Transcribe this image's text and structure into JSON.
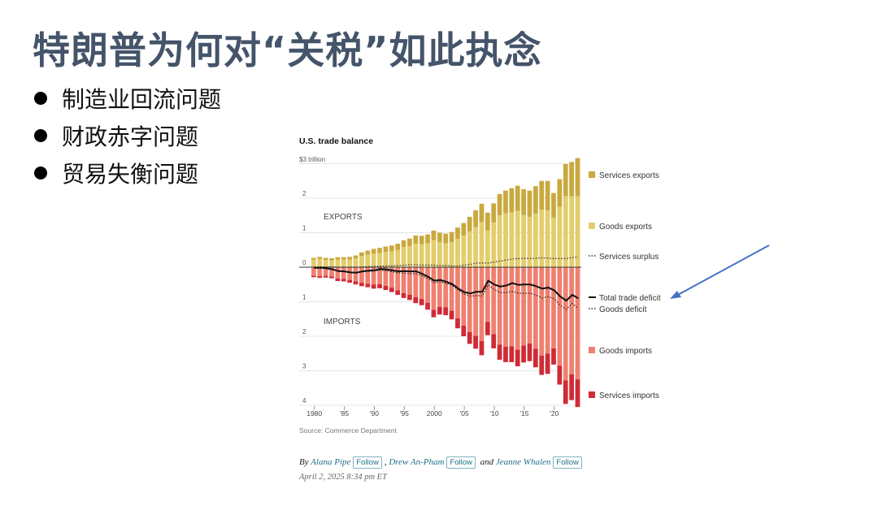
{
  "slide": {
    "title": "特朗普为何对“关税”如此执念",
    "bullets": [
      "制造业回流问题",
      "财政赤字问题",
      "贸易失衡问题"
    ]
  },
  "byline": {
    "by": "By",
    "authors": [
      "Alana Pipe",
      "Drew An-Pham",
      "Jeanne Whalen"
    ],
    "follow_label": "Follow",
    "separator": ",",
    "and": "and",
    "date": "April 2, 2025 8:34 pm ET"
  },
  "colors": {
    "services_exports": "#c9a93e",
    "goods_exports": "#e3cd6c",
    "goods_imports": "#ef8070",
    "services_imports": "#cf2b36",
    "trade_deficit": "#111111",
    "arrow": "#4472c4"
  },
  "chart_data": {
    "type": "bar",
    "title": "U.S. trade balance",
    "source": "Source: Commerce Department",
    "unit_label": "$3 trillion",
    "y_ticks": [
      "0",
      "1",
      "2",
      "3",
      "4"
    ],
    "y_range": [
      -4.2,
      3.2
    ],
    "x_tick_labels": [
      "1980",
      "'85",
      "'90",
      "'95",
      "2000",
      "'05",
      "'10",
      "'15",
      "'20"
    ],
    "annotations": {
      "exports": "EXPORTS",
      "imports": "IMPORTS"
    },
    "years": [
      1980,
      1981,
      1982,
      1983,
      1984,
      1985,
      1986,
      1987,
      1988,
      1989,
      1990,
      1991,
      1992,
      1993,
      1994,
      1995,
      1996,
      1997,
      1998,
      1999,
      2000,
      2001,
      2002,
      2003,
      2004,
      2005,
      2006,
      2007,
      2008,
      2009,
      2010,
      2011,
      2012,
      2013,
      2014,
      2015,
      2016,
      2017,
      2018,
      2019,
      2020,
      2021,
      2022,
      2023,
      2024
    ],
    "series": [
      {
        "name": "Services exports",
        "values": [
          0.05,
          0.06,
          0.06,
          0.06,
          0.07,
          0.07,
          0.08,
          0.09,
          0.11,
          0.12,
          0.14,
          0.15,
          0.16,
          0.17,
          0.18,
          0.2,
          0.22,
          0.24,
          0.24,
          0.26,
          0.28,
          0.27,
          0.28,
          0.29,
          0.33,
          0.37,
          0.42,
          0.49,
          0.53,
          0.51,
          0.56,
          0.62,
          0.66,
          0.7,
          0.73,
          0.75,
          0.76,
          0.8,
          0.83,
          0.85,
          0.72,
          0.8,
          0.93,
          1.0,
          1.1
        ]
      },
      {
        "name": "Goods exports",
        "values": [
          0.22,
          0.24,
          0.21,
          0.2,
          0.22,
          0.22,
          0.22,
          0.25,
          0.32,
          0.36,
          0.39,
          0.41,
          0.44,
          0.46,
          0.5,
          0.58,
          0.61,
          0.68,
          0.67,
          0.69,
          0.78,
          0.73,
          0.69,
          0.73,
          0.82,
          0.91,
          1.04,
          1.16,
          1.31,
          1.07,
          1.29,
          1.5,
          1.56,
          1.59,
          1.63,
          1.51,
          1.46,
          1.55,
          1.67,
          1.65,
          1.43,
          1.75,
          2.06,
          2.05,
          2.06
        ]
      },
      {
        "name": "Goods imports",
        "values": [
          0.25,
          0.26,
          0.25,
          0.27,
          0.33,
          0.34,
          0.37,
          0.41,
          0.45,
          0.48,
          0.5,
          0.49,
          0.54,
          0.59,
          0.67,
          0.75,
          0.8,
          0.87,
          0.92,
          1.03,
          1.23,
          1.15,
          1.16,
          1.26,
          1.48,
          1.69,
          1.88,
          1.99,
          2.14,
          1.58,
          1.94,
          2.24,
          2.3,
          2.29,
          2.39,
          2.27,
          2.21,
          2.36,
          2.56,
          2.5,
          2.35,
          2.85,
          3.28,
          3.1,
          3.25
        ]
      },
      {
        "name": "Services imports",
        "values": [
          0.04,
          0.05,
          0.05,
          0.05,
          0.07,
          0.07,
          0.08,
          0.09,
          0.1,
          0.1,
          0.12,
          0.12,
          0.12,
          0.13,
          0.13,
          0.14,
          0.15,
          0.17,
          0.18,
          0.2,
          0.22,
          0.22,
          0.23,
          0.25,
          0.29,
          0.31,
          0.34,
          0.37,
          0.41,
          0.39,
          0.41,
          0.44,
          0.45,
          0.46,
          0.48,
          0.49,
          0.51,
          0.54,
          0.56,
          0.59,
          0.47,
          0.55,
          0.68,
          0.75,
          0.8
        ]
      },
      {
        "name": "Total trade deficit",
        "values": [
          -0.02,
          -0.01,
          -0.03,
          -0.06,
          -0.11,
          -0.12,
          -0.15,
          -0.16,
          -0.12,
          -0.1,
          -0.09,
          -0.05,
          -0.06,
          -0.09,
          -0.12,
          -0.11,
          -0.12,
          -0.12,
          -0.19,
          -0.28,
          -0.39,
          -0.37,
          -0.42,
          -0.49,
          -0.62,
          -0.72,
          -0.76,
          -0.71,
          -0.71,
          -0.39,
          -0.5,
          -0.56,
          -0.53,
          -0.46,
          -0.51,
          -0.5,
          -0.5,
          -0.55,
          -0.62,
          -0.59,
          -0.67,
          -0.85,
          -0.97,
          -0.8,
          -0.9
        ]
      },
      {
        "name": "Goods deficit",
        "values": [
          -0.03,
          -0.03,
          -0.04,
          -0.07,
          -0.11,
          -0.12,
          -0.15,
          -0.16,
          -0.13,
          -0.12,
          -0.11,
          -0.08,
          -0.1,
          -0.13,
          -0.17,
          -0.17,
          -0.19,
          -0.19,
          -0.25,
          -0.34,
          -0.45,
          -0.42,
          -0.47,
          -0.53,
          -0.66,
          -0.78,
          -0.84,
          -0.82,
          -0.83,
          -0.51,
          -0.65,
          -0.74,
          -0.74,
          -0.7,
          -0.75,
          -0.76,
          -0.75,
          -0.81,
          -0.89,
          -0.85,
          -0.92,
          -1.1,
          -1.22,
          -1.05,
          -1.2
        ]
      },
      {
        "name": "Services surplus",
        "values": [
          0.01,
          0.01,
          0.01,
          0.01,
          0.0,
          0.0,
          0.0,
          0.0,
          0.01,
          0.02,
          0.02,
          0.03,
          0.04,
          0.04,
          0.05,
          0.06,
          0.07,
          0.07,
          0.06,
          0.06,
          0.06,
          0.05,
          0.05,
          0.04,
          0.04,
          0.06,
          0.08,
          0.12,
          0.12,
          0.12,
          0.15,
          0.18,
          0.21,
          0.24,
          0.25,
          0.26,
          0.25,
          0.26,
          0.27,
          0.26,
          0.25,
          0.25,
          0.25,
          0.28,
          0.3
        ]
      }
    ],
    "legend_placement": "right"
  }
}
